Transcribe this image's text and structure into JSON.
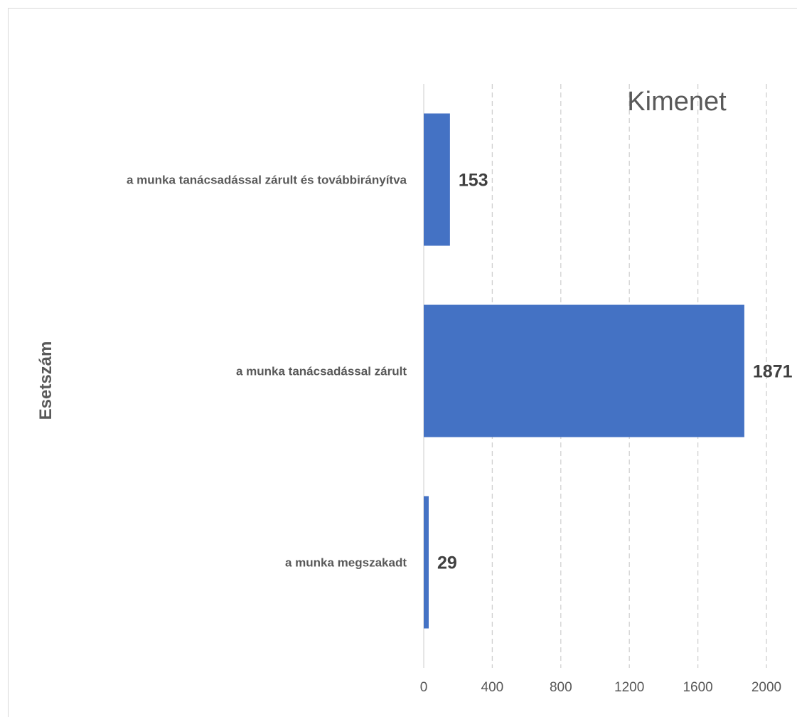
{
  "chart_data": {
    "type": "bar",
    "orientation": "horizontal",
    "title": "Kimenet",
    "ylabel": "Esetszám",
    "xlabel": "",
    "categories": [
      "a munka tanácsadással zárult és továbbirányítva",
      "a munka tanácsadással zárult",
      "a munka megszakadt"
    ],
    "values": [
      153,
      1871,
      29
    ],
    "xlim": [
      0,
      2000
    ],
    "xticks": [
      0,
      400,
      800,
      1200,
      1600,
      2000
    ],
    "grid": "vertical dashed",
    "bar_color": "#4472c4",
    "data_labels": true
  }
}
